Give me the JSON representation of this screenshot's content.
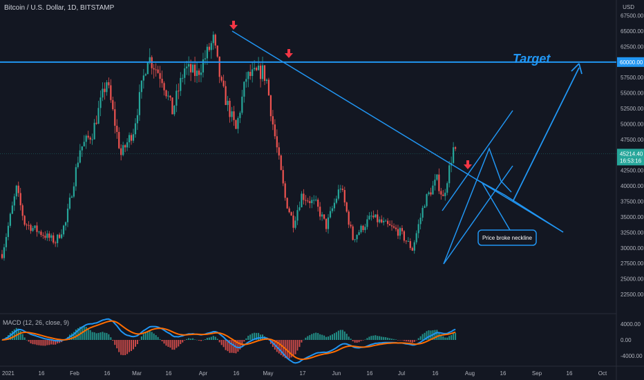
{
  "header": {
    "title": "Bitcoin / U.S. Dollar, 1D, BITSTAMP",
    "currency": "USD",
    "macd_label": "MACD (12, 26, close, 9)"
  },
  "annotations": {
    "target": "Target",
    "callout": "Price broke neckline"
  },
  "price_badges": {
    "target_level": "60000.00",
    "last_price": "45214.40",
    "countdown": "16:53:16"
  },
  "colors": {
    "background": "#131722",
    "up": "#26a69a",
    "down": "#ef5350",
    "line": "#2196f3",
    "macd": "#2196f3",
    "signal": "#ff6d00",
    "arrow": "#f23645"
  },
  "chart_data": {
    "type": "candlestick",
    "title": "Bitcoin / U.S. Dollar, 1D, BITSTAMP",
    "ylabel": "USD",
    "ylim": [
      20000,
      67500
    ],
    "y_ticks": [
      "67500.00",
      "65000.00",
      "62500.00",
      "60000.00",
      "57500.00",
      "55000.00",
      "52500.00",
      "50000.00",
      "47500.00",
      "45000.00",
      "42500.00",
      "40000.00",
      "37500.00",
      "35000.00",
      "32500.00",
      "30000.00",
      "27500.00",
      "25000.00",
      "22500.00"
    ],
    "x_ticks": [
      "2021",
      "16",
      "Feb",
      "16",
      "Mar",
      "16",
      "Apr",
      "16",
      "May",
      "17",
      "Jun",
      "16",
      "Jul",
      "16",
      "Aug",
      "16",
      "Sep",
      "16",
      "Oct"
    ],
    "price_path": [
      [
        "2021-01-01",
        29000
      ],
      [
        "2021-01-08",
        39500
      ],
      [
        "2021-01-12",
        34000
      ],
      [
        "2021-01-22",
        32000
      ],
      [
        "2021-01-27",
        31000
      ],
      [
        "2021-02-01",
        34000
      ],
      [
        "2021-02-08",
        46000
      ],
      [
        "2021-02-14",
        48500
      ],
      [
        "2021-02-21",
        57000
      ],
      [
        "2021-02-28",
        45000
      ],
      [
        "2021-03-06",
        49000
      ],
      [
        "2021-03-13",
        61000
      ],
      [
        "2021-03-20",
        57500
      ],
      [
        "2021-03-25",
        52000
      ],
      [
        "2021-03-31",
        59000
      ],
      [
        "2021-04-06",
        58000
      ],
      [
        "2021-04-14",
        63500
      ],
      [
        "2021-04-18",
        56000
      ],
      [
        "2021-04-25",
        49000
      ],
      [
        "2021-04-30",
        57500
      ],
      [
        "2021-05-08",
        58500
      ],
      [
        "2021-05-10",
        57000
      ],
      [
        "2021-05-13",
        50000
      ],
      [
        "2021-05-19",
        38000
      ],
      [
        "2021-05-23",
        34000
      ],
      [
        "2021-05-27",
        38500
      ],
      [
        "2021-06-03",
        37000
      ],
      [
        "2021-06-08",
        33500
      ],
      [
        "2021-06-15",
        40000
      ],
      [
        "2021-06-21",
        31500
      ],
      [
        "2021-06-30",
        35000
      ],
      [
        "2021-07-08",
        33500
      ],
      [
        "2021-07-14",
        32500
      ],
      [
        "2021-07-20",
        29800
      ],
      [
        "2021-07-26",
        37500
      ],
      [
        "2021-08-01",
        41000
      ],
      [
        "2021-08-04",
        38000
      ],
      [
        "2021-08-09",
        46000
      ],
      [
        "2021-08-10",
        45214.4
      ]
    ],
    "horizontal_lines": [
      {
        "value": 60000,
        "label": "60000.00"
      }
    ],
    "last_price": 45214.4,
    "macd": {
      "ylim": [
        -5000,
        5000
      ],
      "y_ticks": [
        "4000.00",
        "0.00",
        "-4000.00"
      ]
    },
    "grid": false
  }
}
